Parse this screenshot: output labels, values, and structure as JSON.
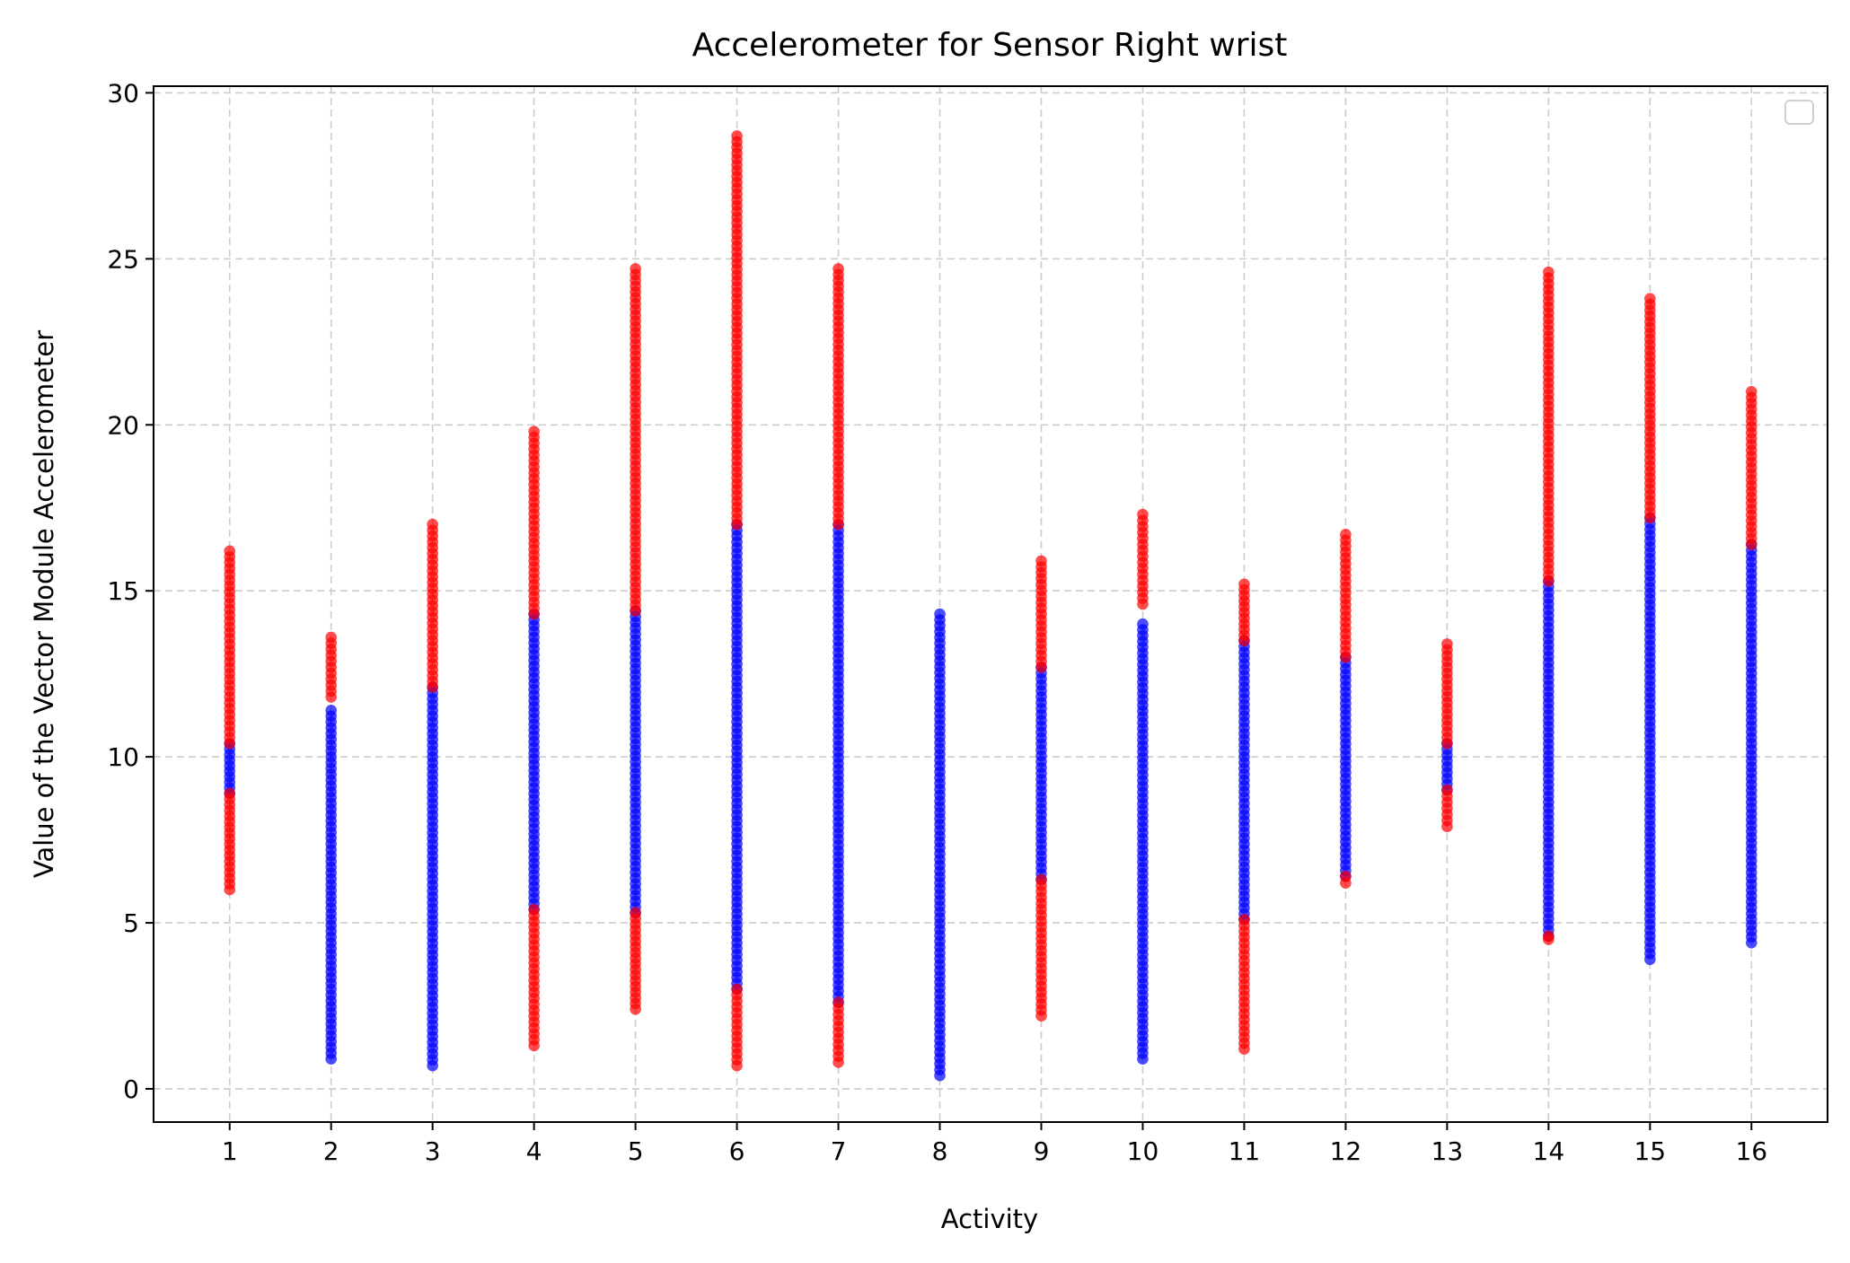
{
  "chart_data": {
    "type": "scatter",
    "title": "Accelerometer for Sensor Right wrist",
    "xlabel": "Activity",
    "ylabel": "Value of the Vector Module Accelerometer",
    "xlim": [
      0.25,
      16.75
    ],
    "ylim": [
      -1.0,
      30.2
    ],
    "xticks": [
      1,
      2,
      3,
      4,
      5,
      6,
      7,
      8,
      9,
      10,
      11,
      12,
      13,
      14,
      15,
      16
    ],
    "yticks": [
      0,
      5,
      10,
      15,
      20,
      25,
      30
    ],
    "grid": true,
    "legend": {
      "position": "upper-right",
      "entries": []
    },
    "colors": {
      "inlier": "#0000ff",
      "outlier": "#ff0000"
    },
    "series": [
      {
        "color": "blue",
        "description": "inlier points (vertical ranges per activity)",
        "ranges": [
          {
            "x": 1,
            "ymin": 8.9,
            "ymax": 10.4
          },
          {
            "x": 2,
            "ymin": 0.9,
            "ymax": 11.4
          },
          {
            "x": 3,
            "ymin": 0.7,
            "ymax": 12.1
          },
          {
            "x": 4,
            "ymin": 5.4,
            "ymax": 14.3
          },
          {
            "x": 5,
            "ymin": 5.3,
            "ymax": 14.4
          },
          {
            "x": 6,
            "ymin": 3.0,
            "ymax": 17.0
          },
          {
            "x": 7,
            "ymin": 2.6,
            "ymax": 17.0
          },
          {
            "x": 8,
            "ymin": 0.4,
            "ymax": 14.3
          },
          {
            "x": 9,
            "ymin": 6.3,
            "ymax": 12.7
          },
          {
            "x": 10,
            "ymin": 0.9,
            "ymax": 14.0
          },
          {
            "x": 11,
            "ymin": 5.1,
            "ymax": 13.5
          },
          {
            "x": 12,
            "ymin": 6.4,
            "ymax": 13.0
          },
          {
            "x": 13,
            "ymin": 9.0,
            "ymax": 10.4
          },
          {
            "x": 14,
            "ymin": 4.6,
            "ymax": 15.3
          },
          {
            "x": 15,
            "ymin": 3.9,
            "ymax": 17.2
          },
          {
            "x": 16,
            "ymin": 4.4,
            "ymax": 16.4
          }
        ]
      },
      {
        "color": "red",
        "description": "outlier points (vertical ranges per activity)",
        "ranges": [
          {
            "x": 1,
            "ymin": 6.0,
            "ymax": 8.9
          },
          {
            "x": 1,
            "ymin": 10.4,
            "ymax": 16.2
          },
          {
            "x": 2,
            "ymin": 11.8,
            "ymax": 13.6
          },
          {
            "x": 3,
            "ymin": 12.1,
            "ymax": 17.0
          },
          {
            "x": 4,
            "ymin": 1.3,
            "ymax": 5.4
          },
          {
            "x": 4,
            "ymin": 14.3,
            "ymax": 19.8
          },
          {
            "x": 5,
            "ymin": 2.4,
            "ymax": 5.3
          },
          {
            "x": 5,
            "ymin": 14.4,
            "ymax": 24.7
          },
          {
            "x": 6,
            "ymin": 0.7,
            "ymax": 3.0
          },
          {
            "x": 6,
            "ymin": 17.0,
            "ymax": 28.7
          },
          {
            "x": 7,
            "ymin": 0.8,
            "ymax": 2.6
          },
          {
            "x": 7,
            "ymin": 17.0,
            "ymax": 24.7
          },
          {
            "x": 9,
            "ymin": 2.2,
            "ymax": 6.3
          },
          {
            "x": 9,
            "ymin": 12.7,
            "ymax": 15.9
          },
          {
            "x": 10,
            "ymin": 14.6,
            "ymax": 17.3
          },
          {
            "x": 11,
            "ymin": 1.2,
            "ymax": 5.1
          },
          {
            "x": 11,
            "ymin": 13.5,
            "ymax": 15.2
          },
          {
            "x": 12,
            "ymin": 6.2,
            "ymax": 6.4
          },
          {
            "x": 12,
            "ymin": 13.0,
            "ymax": 16.7
          },
          {
            "x": 13,
            "ymin": 7.9,
            "ymax": 9.0
          },
          {
            "x": 13,
            "ymin": 10.4,
            "ymax": 13.4
          },
          {
            "x": 14,
            "ymin": 4.5,
            "ymax": 4.6
          },
          {
            "x": 14,
            "ymin": 15.3,
            "ymax": 24.6
          },
          {
            "x": 15,
            "ymin": 17.2,
            "ymax": 23.8
          },
          {
            "x": 16,
            "ymin": 16.4,
            "ymax": 21.0
          }
        ]
      }
    ]
  }
}
